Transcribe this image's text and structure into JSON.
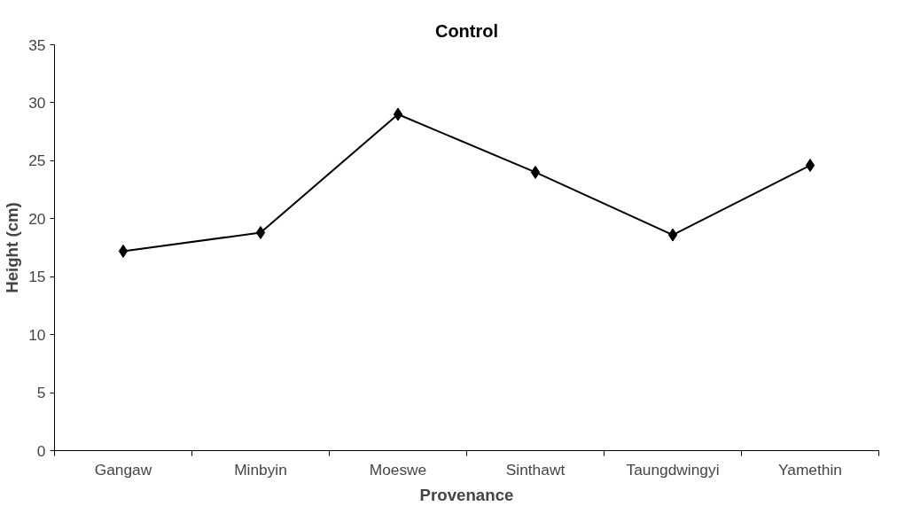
{
  "chart_data": {
    "type": "line",
    "title": "Control",
    "xlabel": "Provenance",
    "ylabel": "Height (cm)",
    "categories": [
      "Gangaw",
      "Minbyin",
      "Moeswe",
      "Sinthawt",
      "Taungdwingyi",
      "Yamethin"
    ],
    "series": [
      {
        "color": "#000000",
        "values": [
          17.2,
          18.8,
          29.0,
          24.0,
          18.6,
          24.6
        ]
      }
    ],
    "ylim": [
      0,
      35
    ],
    "yticks": [
      0,
      5,
      10,
      15,
      20,
      25,
      30,
      35
    ],
    "marker": "diamond",
    "line_style": "solid"
  }
}
